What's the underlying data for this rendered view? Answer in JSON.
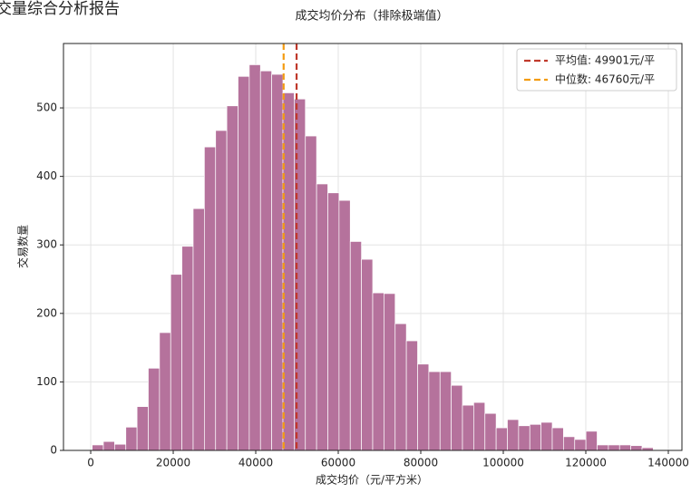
{
  "page_title": "交量综合分析报告",
  "chart_data": {
    "type": "histogram",
    "title": "成交均价分布（排除极端值）",
    "xlabel": "成交均价（元/平方米）",
    "ylabel": "交易数量",
    "bins": [
      350,
      3070,
      5790,
      8510,
      11230,
      13950,
      16670,
      19390,
      22110,
      24830,
      27550,
      30270,
      32990,
      35710,
      38430,
      41150,
      43870,
      46590,
      49310,
      52030,
      54750,
      57470,
      60190,
      62910,
      65630,
      68350,
      71070,
      73790,
      76510,
      79230,
      81950,
      84670,
      87390,
      90110,
      92830,
      95550,
      98270,
      100990,
      103710,
      106430,
      109150,
      111870,
      114590,
      117310,
      120030,
      122750,
      125470,
      128190,
      130910,
      133630,
      136350
    ],
    "counts": [
      8,
      13,
      9,
      34,
      64,
      120,
      172,
      257,
      298,
      353,
      443,
      467,
      503,
      546,
      563,
      554,
      549,
      522,
      513,
      459,
      389,
      376,
      365,
      305,
      279,
      230,
      229,
      185,
      160,
      126,
      115,
      115,
      95,
      66,
      70,
      54,
      33,
      45,
      36,
      38,
      41,
      33,
      20,
      16,
      28,
      8,
      8,
      8,
      7,
      4
    ],
    "color": "#b5729c",
    "lines": [
      {
        "value": 49901,
        "label": "平均值: 49901元/平",
        "color": "#c0392b"
      },
      {
        "value": 46760,
        "label": "中位数: 46760元/平",
        "color": "#f39c12"
      }
    ],
    "xlim": [
      -6600,
      143300
    ],
    "ylim": [
      0,
      594
    ],
    "xticks": [
      0,
      20000,
      40000,
      60000,
      80000,
      100000,
      120000,
      140000
    ],
    "yticks": [
      0,
      100,
      200,
      300,
      400,
      500
    ],
    "grid": true,
    "legend": "upper right"
  }
}
